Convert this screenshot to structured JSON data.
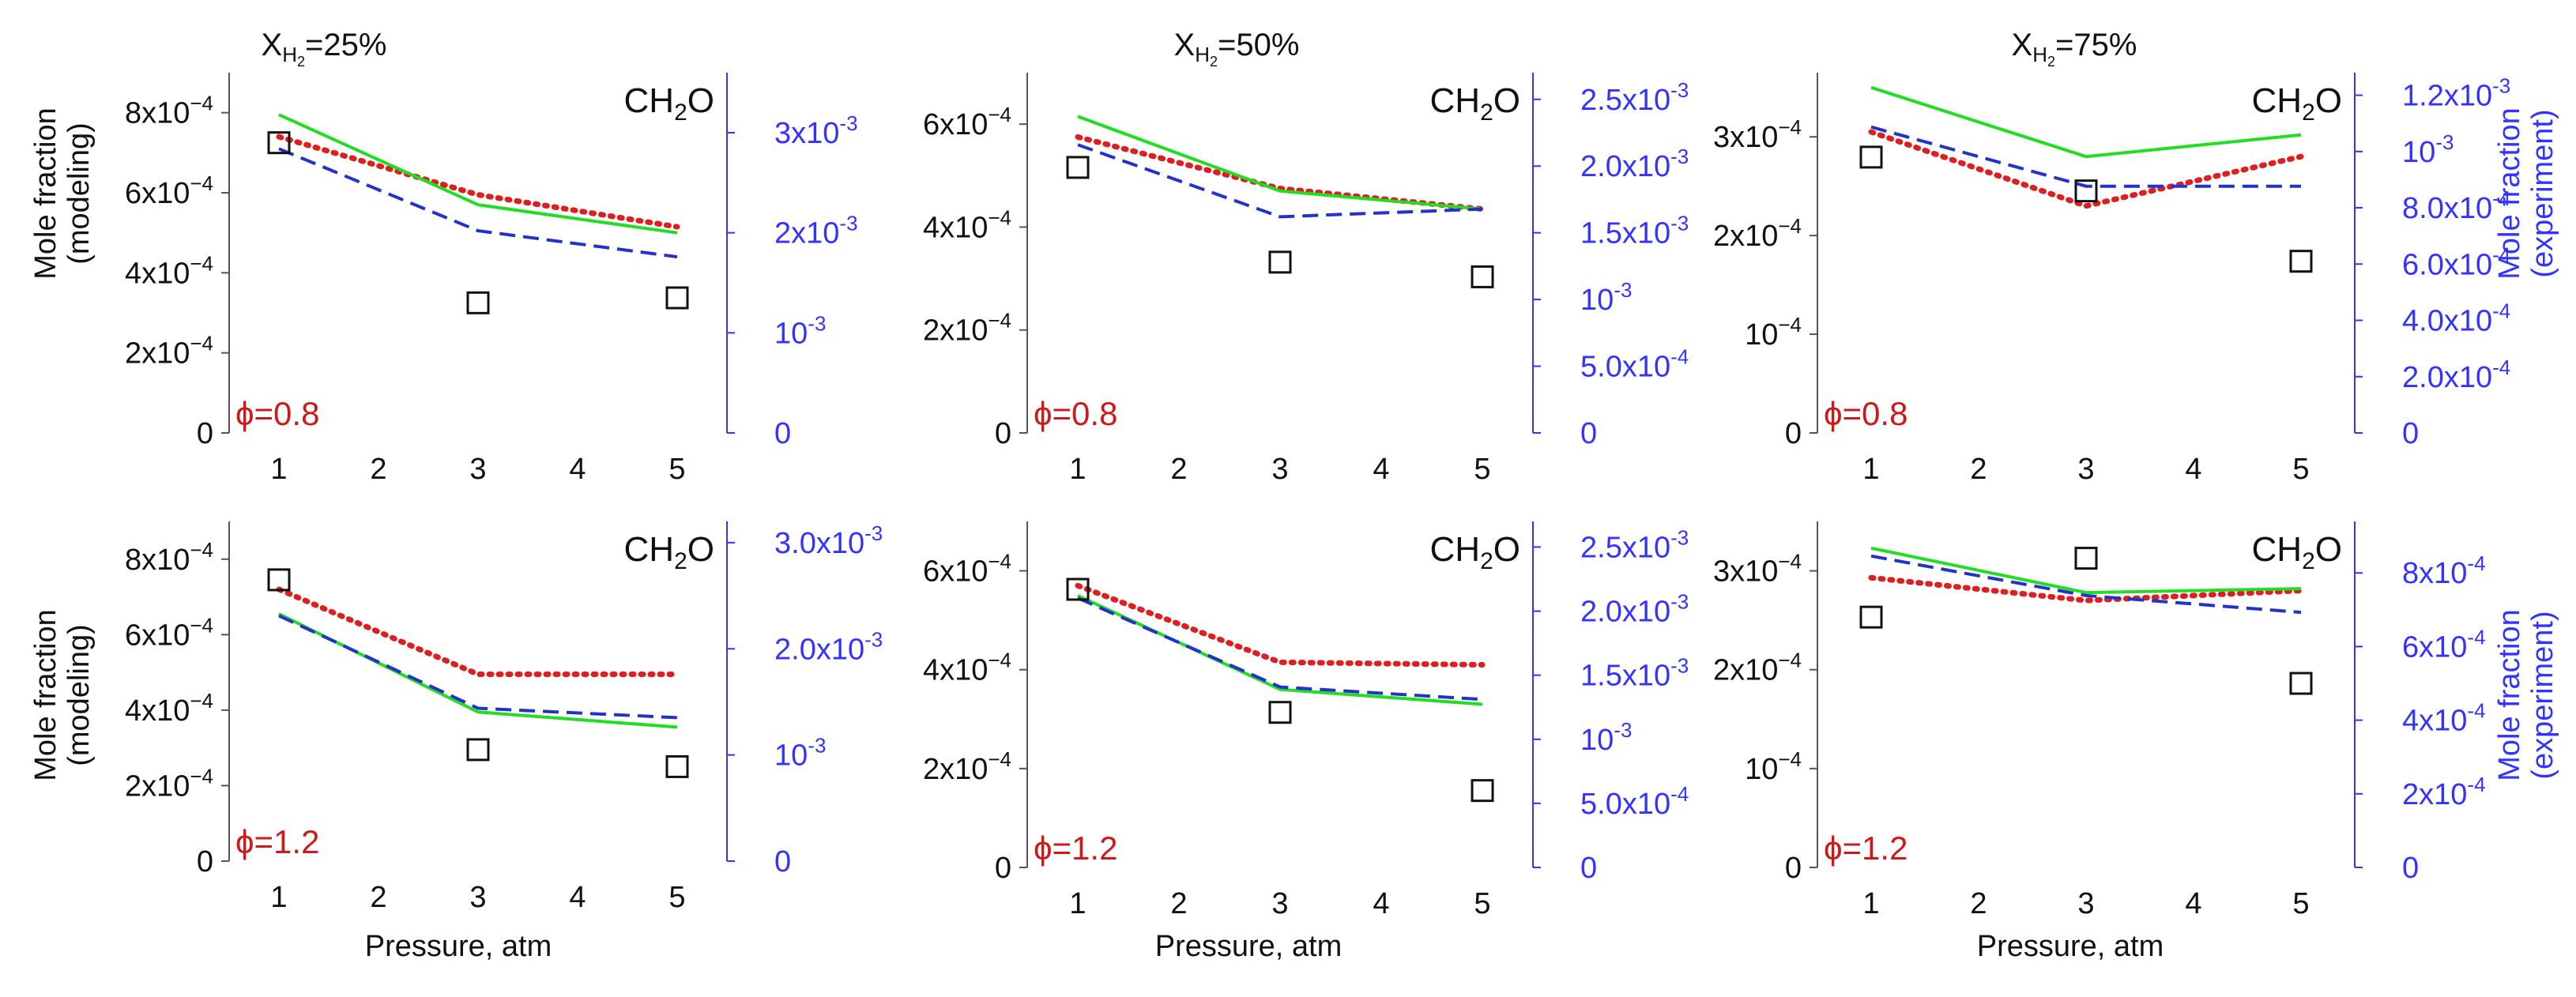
{
  "figure": {
    "col_titles": [
      {
        "base": "X",
        "sub": "H",
        "subsub": "2",
        "rest": "=25%"
      },
      {
        "base": "X",
        "sub": "H",
        "subsub": "2",
        "rest": "=50%"
      },
      {
        "base": "X",
        "sub": "H",
        "subsub": "2",
        "rest": "=75%"
      }
    ],
    "ylabel_left": [
      "Mole fraction",
      "(modeling)"
    ],
    "ylabel_right": [
      "Mole fraction",
      "(experiment)"
    ],
    "xlabel": "Pressure, atm",
    "species": {
      "base": "CH",
      "sub": "2",
      "rest": "O"
    }
  },
  "colors": {
    "red": "#dd1f1f",
    "green": "#22dd22",
    "blue": "#2233cc",
    "exp": "#111111",
    "right_axis": "#3333ff",
    "phi": "#cc1a1a"
  },
  "chart_data": [
    {
      "type": "line",
      "title": "XH2=25%",
      "phi": "ϕ=0.8",
      "x": [
        1,
        3,
        5
      ],
      "xlim": [
        0.5,
        5.5
      ],
      "xticks": [
        "1",
        "2",
        "3",
        "4",
        "5"
      ],
      "left_lim": [
        0,
        0.0009
      ],
      "left_ticks": [
        {
          "v": 0,
          "m": "0"
        },
        {
          "v": 0.0002,
          "m": "2x10",
          "e": "−4"
        },
        {
          "v": 0.0004,
          "m": "4x10",
          "e": "−4"
        },
        {
          "v": 0.0006,
          "m": "6x10",
          "e": "−4"
        },
        {
          "v": 0.0008,
          "m": "8x10",
          "e": "−4"
        }
      ],
      "right_lim": [
        0,
        0.0036
      ],
      "right_ticks": [
        {
          "v": 0,
          "m": "0"
        },
        {
          "v": 0.001,
          "m": "10",
          "e": "-3"
        },
        {
          "v": 0.002,
          "m": "2x10",
          "e": "-3"
        },
        {
          "v": 0.003,
          "m": "3x10",
          "e": "-3"
        }
      ],
      "series": [
        {
          "name": "red-dotted",
          "values": [
            0.00074,
            0.000595,
            0.000515
          ]
        },
        {
          "name": "green-solid",
          "values": [
            0.000795,
            0.00057,
            0.0005
          ]
        },
        {
          "name": "blue-dashed",
          "values": [
            0.00071,
            0.000505,
            0.00044
          ]
        }
      ],
      "experiment": [
        0.0029,
        0.0013,
        0.00135
      ]
    },
    {
      "type": "line",
      "title": "XH2=50%",
      "phi": "ϕ=0.8",
      "x": [
        1,
        3,
        5
      ],
      "xlim": [
        0.5,
        5.5
      ],
      "xticks": [
        "1",
        "2",
        "3",
        "4",
        "5"
      ],
      "left_lim": [
        0,
        0.0007
      ],
      "left_ticks": [
        {
          "v": 0,
          "m": "0"
        },
        {
          "v": 0.0002,
          "m": "2x10",
          "e": "−4"
        },
        {
          "v": 0.0004,
          "m": "4x10",
          "e": "−4"
        },
        {
          "v": 0.0006,
          "m": "6x10",
          "e": "−4"
        }
      ],
      "right_lim": [
        0,
        0.0027
      ],
      "right_ticks": [
        {
          "v": 0,
          "m": "0"
        },
        {
          "v": 0.0005,
          "m": "5.0x10",
          "e": "-4"
        },
        {
          "v": 0.001,
          "m": "10",
          "e": "-3"
        },
        {
          "v": 0.0015,
          "m": "1.5x10",
          "e": "-3"
        },
        {
          "v": 0.002,
          "m": "2.0x10",
          "e": "-3"
        },
        {
          "v": 0.0025,
          "m": "2.5x10",
          "e": "-3"
        }
      ],
      "series": [
        {
          "name": "red-dotted",
          "values": [
            0.000575,
            0.000475,
            0.000435
          ]
        },
        {
          "name": "green-solid",
          "values": [
            0.000615,
            0.00047,
            0.000435
          ]
        },
        {
          "name": "blue-dashed",
          "values": [
            0.00056,
            0.00042,
            0.000435
          ]
        }
      ],
      "experiment": [
        0.00199,
        0.00128,
        0.00117
      ]
    },
    {
      "type": "line",
      "title": "XH2=75%",
      "phi": "ϕ=0.8",
      "x": [
        1,
        3,
        5
      ],
      "xlim": [
        0.5,
        5.5
      ],
      "xticks": [
        "1",
        "2",
        "3",
        "4",
        "5"
      ],
      "left_lim": [
        0,
        0.000365
      ],
      "left_ticks": [
        {
          "v": 0,
          "m": "0"
        },
        {
          "v": 0.0001,
          "m": "10",
          "e": "−4"
        },
        {
          "v": 0.0002,
          "m": "2x10",
          "e": "−4"
        },
        {
          "v": 0.0003,
          "m": "3x10",
          "e": "−4"
        }
      ],
      "right_lim": [
        0,
        0.00128
      ],
      "right_ticks": [
        {
          "v": 0,
          "m": "0"
        },
        {
          "v": 0.0002,
          "m": "2.0x10",
          "e": "-4"
        },
        {
          "v": 0.0004,
          "m": "4.0x10",
          "e": "-4"
        },
        {
          "v": 0.0006,
          "m": "6.0x10",
          "e": "-4"
        },
        {
          "v": 0.0008,
          "m": "8.0x10",
          "e": "-4"
        },
        {
          "v": 0.001,
          "m": "10",
          "e": "-3"
        },
        {
          "v": 0.0012,
          "m": "1.2x10",
          "e": "-3"
        }
      ],
      "series": [
        {
          "name": "red-dotted",
          "values": [
            0.000305,
            0.00023,
            0.00028
          ]
        },
        {
          "name": "green-solid",
          "values": [
            0.00035,
            0.00028,
            0.000302
          ]
        },
        {
          "name": "blue-dashed",
          "values": [
            0.00031,
            0.00025,
            0.00025
          ]
        }
      ],
      "experiment": [
        0.00098,
        0.00086,
        0.00061
      ]
    },
    {
      "type": "line",
      "title": "XH2=25%",
      "phi": "ϕ=1.2",
      "x": [
        1,
        3,
        5
      ],
      "xlim": [
        0.5,
        5.5
      ],
      "xticks": [
        "1",
        "2",
        "3",
        "4",
        "5"
      ],
      "left_lim": [
        0,
        0.0009
      ],
      "left_ticks": [
        {
          "v": 0,
          "m": "0"
        },
        {
          "v": 0.0002,
          "m": "2x10",
          "e": "−4"
        },
        {
          "v": 0.0004,
          "m": "4x10",
          "e": "−4"
        },
        {
          "v": 0.0006,
          "m": "6x10",
          "e": "−4"
        },
        {
          "v": 0.0008,
          "m": "8x10",
          "e": "−4"
        }
      ],
      "right_lim": [
        0,
        0.0032
      ],
      "right_ticks": [
        {
          "v": 0,
          "m": "0"
        },
        {
          "v": 0.001,
          "m": "10",
          "e": "-3"
        },
        {
          "v": 0.002,
          "m": "2.0x10",
          "e": "-3"
        },
        {
          "v": 0.003,
          "m": "3.0x10",
          "e": "-3"
        }
      ],
      "series": [
        {
          "name": "red-dotted",
          "values": [
            0.00072,
            0.000495,
            0.000495
          ]
        },
        {
          "name": "green-solid",
          "values": [
            0.000655,
            0.000395,
            0.000355
          ]
        },
        {
          "name": "blue-dashed",
          "values": [
            0.00065,
            0.000405,
            0.00038
          ]
        }
      ],
      "experiment": [
        0.00265,
        0.00105,
        0.00089
      ]
    },
    {
      "type": "line",
      "title": "XH2=50%",
      "phi": "ϕ=1.2",
      "x": [
        1,
        3,
        5
      ],
      "xlim": [
        0.5,
        5.5
      ],
      "xticks": [
        "1",
        "2",
        "3",
        "4",
        "5"
      ],
      "left_lim": [
        0,
        0.0007
      ],
      "left_ticks": [
        {
          "v": 0,
          "m": "0"
        },
        {
          "v": 0.0002,
          "m": "2x10",
          "e": "−4"
        },
        {
          "v": 0.0004,
          "m": "4x10",
          "e": "−4"
        },
        {
          "v": 0.0006,
          "m": "6x10",
          "e": "−4"
        }
      ],
      "right_lim": [
        0,
        0.0027
      ],
      "right_ticks": [
        {
          "v": 0,
          "m": "0"
        },
        {
          "v": 0.0005,
          "m": "5.0x10",
          "e": "-4"
        },
        {
          "v": 0.001,
          "m": "10",
          "e": "-3"
        },
        {
          "v": 0.0015,
          "m": "1.5x10",
          "e": "-3"
        },
        {
          "v": 0.002,
          "m": "2.0x10",
          "e": "-3"
        },
        {
          "v": 0.0025,
          "m": "2.5x10",
          "e": "-3"
        }
      ],
      "series": [
        {
          "name": "red-dotted",
          "values": [
            0.00057,
            0.000415,
            0.00041
          ]
        },
        {
          "name": "green-solid",
          "values": [
            0.00055,
            0.00036,
            0.00033
          ]
        },
        {
          "name": "blue-dashed",
          "values": [
            0.000545,
            0.000365,
            0.00034
          ]
        }
      ],
      "experiment": [
        0.00217,
        0.00121,
        0.0006
      ]
    },
    {
      "type": "line",
      "title": "XH2=75%",
      "phi": "ϕ=1.2",
      "x": [
        1,
        3,
        5
      ],
      "xlim": [
        0.5,
        5.5
      ],
      "xticks": [
        "1",
        "2",
        "3",
        "4",
        "5"
      ],
      "left_lim": [
        0,
        0.00035
      ],
      "left_ticks": [
        {
          "v": 0,
          "m": "0"
        },
        {
          "v": 0.0001,
          "m": "10",
          "e": "−4"
        },
        {
          "v": 0.0002,
          "m": "2x10",
          "e": "−4"
        },
        {
          "v": 0.0003,
          "m": "3x10",
          "e": "−4"
        }
      ],
      "right_lim": [
        0,
        0.00094
      ],
      "right_ticks": [
        {
          "v": 0,
          "m": "0"
        },
        {
          "v": 0.0002,
          "m": "2x10",
          "e": "-4"
        },
        {
          "v": 0.0004,
          "m": "4x10",
          "e": "-4"
        },
        {
          "v": 0.0006,
          "m": "6x10",
          "e": "-4"
        },
        {
          "v": 0.0008,
          "m": "8x10",
          "e": "-4"
        }
      ],
      "series": [
        {
          "name": "red-dotted",
          "values": [
            0.000293,
            0.00027,
            0.00028
          ]
        },
        {
          "name": "green-solid",
          "values": [
            0.000323,
            0.000278,
            0.000282
          ]
        },
        {
          "name": "blue-dashed",
          "values": [
            0.000315,
            0.000275,
            0.000258
          ]
        }
      ],
      "experiment": [
        0.00068,
        0.00084,
        0.0005
      ]
    }
  ]
}
